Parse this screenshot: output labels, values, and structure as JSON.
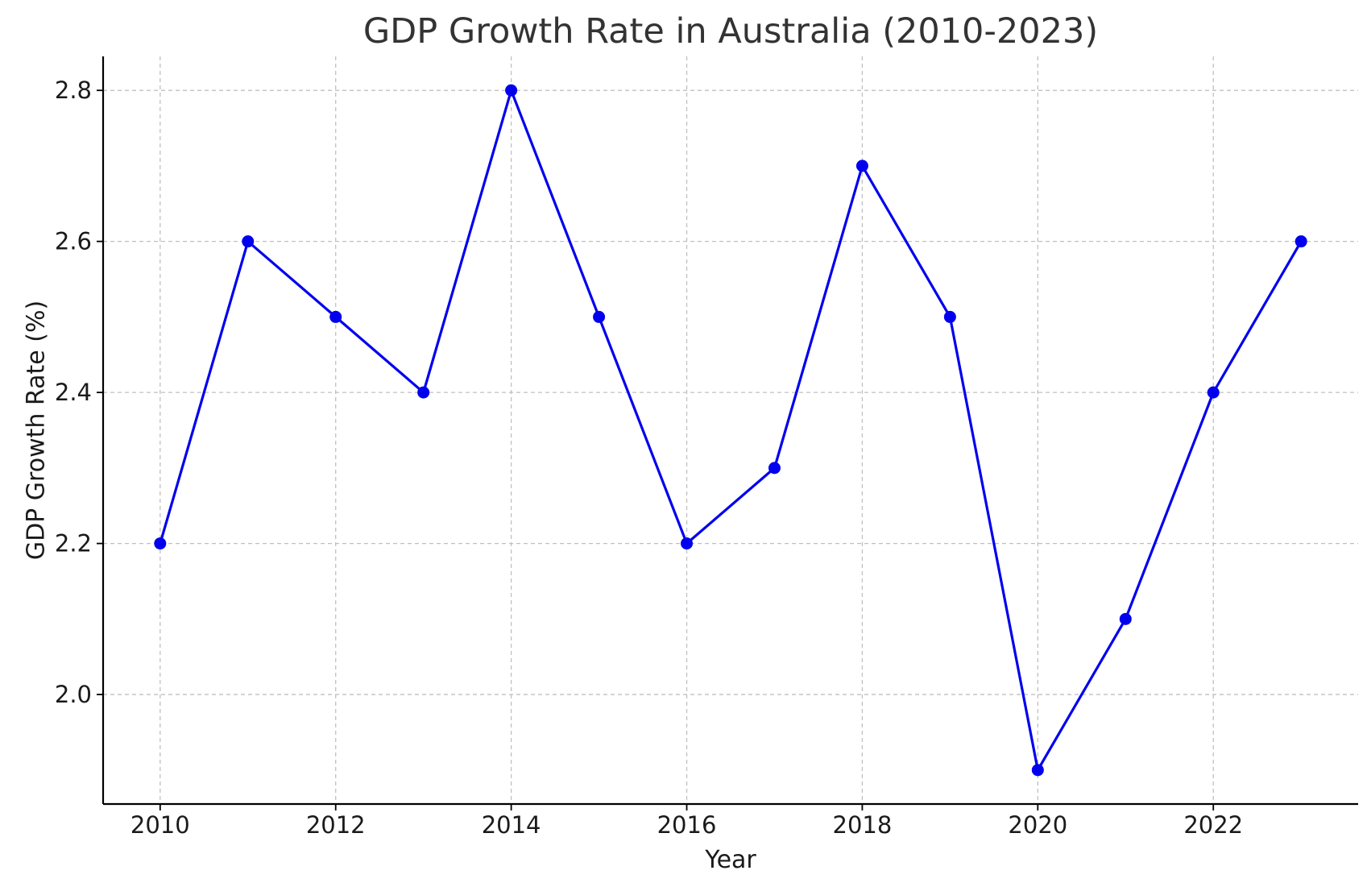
{
  "chart_data": {
    "type": "line",
    "title": "GDP Growth Rate in Australia (2010-2023)",
    "xlabel": "Year",
    "ylabel": "GDP Growth Rate (%)",
    "x": [
      2010,
      2011,
      2012,
      2013,
      2014,
      2015,
      2016,
      2017,
      2018,
      2019,
      2020,
      2021,
      2022,
      2023
    ],
    "series": [
      {
        "values": [
          2.2,
          2.6,
          2.5,
          2.4,
          2.8,
          2.5,
          2.2,
          2.3,
          2.7,
          2.5,
          1.9,
          2.1,
          2.4,
          2.6
        ],
        "color": "#0000ee",
        "marker": "circle"
      }
    ],
    "xlim": [
      2009.35,
      2023.65
    ],
    "ylim": [
      1.855,
      2.845
    ],
    "xticks": [
      2010,
      2012,
      2014,
      2016,
      2018,
      2020,
      2022
    ],
    "xtick_labels": [
      "2010",
      "2012",
      "2014",
      "2016",
      "2018",
      "2020",
      "2022"
    ],
    "yticks": [
      2.0,
      2.2,
      2.4,
      2.6,
      2.8
    ],
    "ytick_labels": [
      "2.0",
      "2.2",
      "2.4",
      "2.6",
      "2.8"
    ],
    "grid": true,
    "grid_color": "#c0c0c0",
    "axis_color": "#000000"
  }
}
